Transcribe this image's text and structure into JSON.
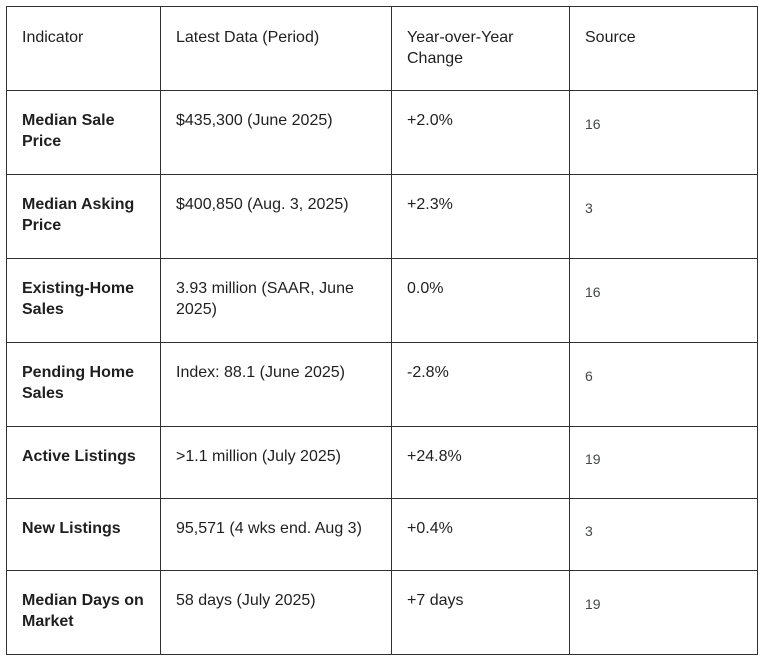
{
  "table": {
    "headers": {
      "indicator": "Indicator",
      "latest": "Latest Data (Period)",
      "yoy": "Year-over-Year Change",
      "source": "Source"
    },
    "rows": [
      {
        "indicator": "Median Sale Price",
        "latest": "$435,300 (June 2025)",
        "yoy": "+2.0%",
        "source": "16"
      },
      {
        "indicator": "Median Asking Price",
        "latest": "$400,850 (Aug. 3, 2025)",
        "yoy": "+2.3%",
        "source": "3"
      },
      {
        "indicator": "Existing-Home Sales",
        "latest": "3.93 million (SAAR, June 2025)",
        "yoy": "0.0%",
        "source": "16"
      },
      {
        "indicator": "Pending Home Sales",
        "latest": "Index: 88.1 (June 2025)",
        "yoy": "-2.8%",
        "source": "6"
      },
      {
        "indicator": "Active Listings",
        "latest": ">1.1 million (July 2025)",
        "yoy": "+24.8%",
        "source": "19"
      },
      {
        "indicator": "New Listings",
        "latest": "95,571 (4 wks end. Aug 3)",
        "yoy": "+0.4%",
        "source": "3"
      },
      {
        "indicator": "Median Days on Market",
        "latest": "58 days (July 2025)",
        "yoy": "+7 days",
        "source": "19"
      }
    ]
  }
}
